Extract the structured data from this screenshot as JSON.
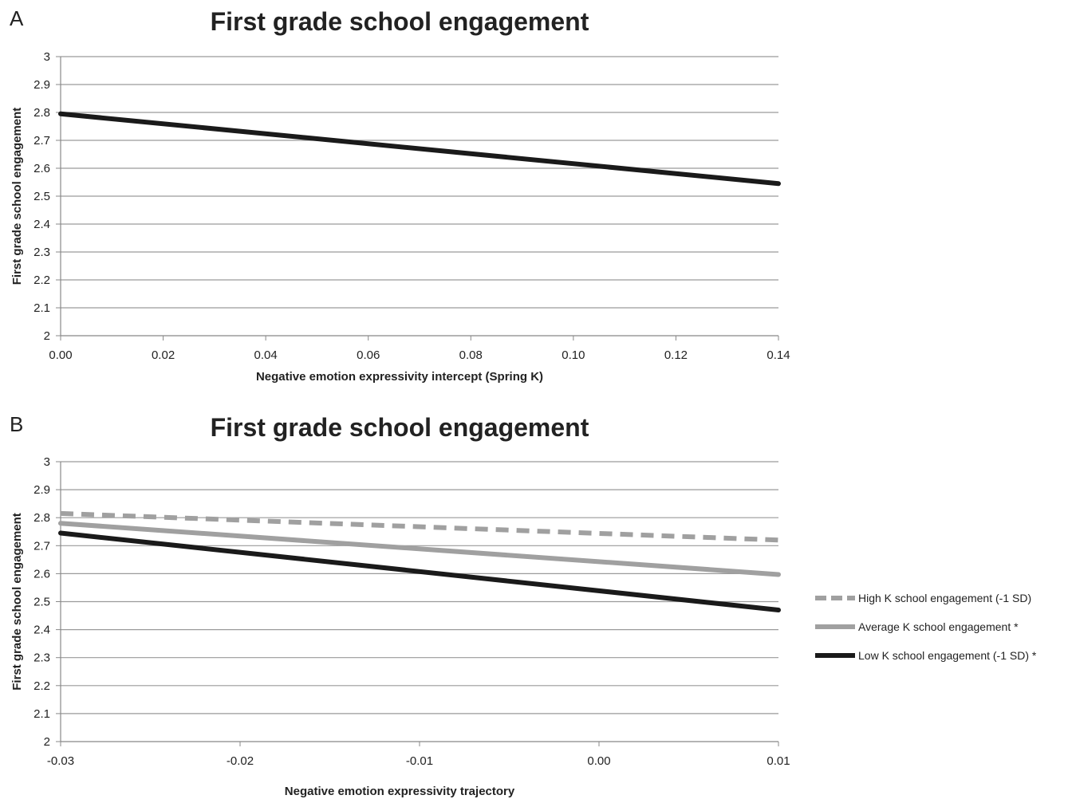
{
  "chart_data": [
    {
      "type": "line",
      "panel": "A",
      "title": "First grade school engagement",
      "xlabel": "Negative emotion expressivity intercept (Spring K)",
      "ylabel": "First grade school engagement",
      "xlim": [
        0,
        0.14
      ],
      "ylim": [
        2,
        3
      ],
      "x_ticks": [
        "0.00",
        "0.02",
        "0.04",
        "0.06",
        "0.08",
        "0.10",
        "0.12",
        "0.14"
      ],
      "y_ticks": [
        "2",
        "2.1",
        "2.2",
        "2.3",
        "2.4",
        "2.5",
        "2.6",
        "2.7",
        "2.8",
        "2.9",
        "3"
      ],
      "grid": true,
      "series": [
        {
          "x": [
            0.0,
            0.14
          ],
          "y": [
            2.795,
            2.545
          ],
          "color": "#1a1a1a",
          "dash": "solid"
        }
      ]
    },
    {
      "type": "line",
      "panel": "B",
      "title": "First grade school engagement",
      "xlabel": "Negative emotion expressivity trajectory",
      "ylabel": "First grade school engagement",
      "xlim": [
        -0.03,
        0.01
      ],
      "ylim": [
        2,
        3
      ],
      "x_ticks": [
        "-0.03",
        "-0.02",
        "-0.01",
        "0.00",
        "0.01"
      ],
      "y_ticks": [
        "2",
        "2.1",
        "2.2",
        "2.3",
        "2.4",
        "2.5",
        "2.6",
        "2.7",
        "2.8",
        "2.9",
        "3"
      ],
      "grid": true,
      "legend_position": "right",
      "series": [
        {
          "name": "High K school engagement (-1 SD)",
          "x": [
            -0.03,
            0.01
          ],
          "y": [
            2.815,
            2.72
          ],
          "color": "#a0a0a0",
          "dash": "dashed"
        },
        {
          "name": "Average K school engagement *",
          "x": [
            -0.03,
            0.01
          ],
          "y": [
            2.78,
            2.597
          ],
          "color": "#a0a0a0",
          "dash": "solid"
        },
        {
          "name": "Low K school engagement (-1 SD) *",
          "x": [
            -0.03,
            0.01
          ],
          "y": [
            2.745,
            2.47
          ],
          "color": "#1a1a1a",
          "dash": "solid"
        }
      ]
    }
  ]
}
